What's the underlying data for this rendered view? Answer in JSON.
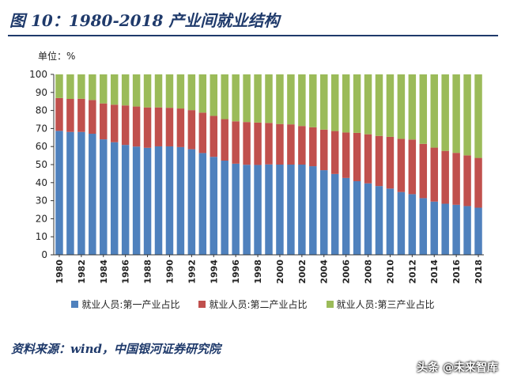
{
  "title": "图 10：1980-2018 产业间就业结构",
  "unit_label": "单位：%",
  "source": "资料来源：wind，中国银河证券研究院",
  "watermark": "头条 @未来智库",
  "colors": {
    "primary": "#4f81bd",
    "secondary": "#c0504d",
    "tertiary": "#9bbb59"
  },
  "chart_data": {
    "type": "bar",
    "stacked": true,
    "categories": [
      "1980",
      "1981",
      "1982",
      "1983",
      "1984",
      "1985",
      "1986",
      "1987",
      "1988",
      "1989",
      "1990",
      "1991",
      "1992",
      "1993",
      "1994",
      "1995",
      "1996",
      "1997",
      "1998",
      "1999",
      "2000",
      "2001",
      "2002",
      "2003",
      "2004",
      "2005",
      "2006",
      "2007",
      "2008",
      "2009",
      "2010",
      "2011",
      "2012",
      "2013",
      "2014",
      "2015",
      "2016",
      "2017",
      "2018"
    ],
    "x_tick_labels": [
      "1980",
      "1982",
      "1984",
      "1986",
      "1988",
      "1990",
      "1992",
      "1994",
      "1996",
      "1998",
      "2000",
      "2002",
      "2004",
      "2006",
      "2008",
      "2010",
      "2012",
      "2014",
      "2016",
      "2018"
    ],
    "series": [
      {
        "name": "就业人员:第一产业占比",
        "color": "#4f81bd",
        "values": [
          68.7,
          68.1,
          68.1,
          67.1,
          64.0,
          62.4,
          60.9,
          60.0,
          59.3,
          60.1,
          60.1,
          59.7,
          58.5,
          56.4,
          54.3,
          52.2,
          50.5,
          49.9,
          49.8,
          50.1,
          50.0,
          50.0,
          50.0,
          49.1,
          46.9,
          44.8,
          42.6,
          40.8,
          39.6,
          38.1,
          36.7,
          34.8,
          33.6,
          31.4,
          29.5,
          28.3,
          27.7,
          27.0,
          26.1
        ]
      },
      {
        "name": "就业人员:第二产业占比",
        "color": "#c0504d",
        "values": [
          18.2,
          18.3,
          18.4,
          18.7,
          19.9,
          20.8,
          21.9,
          22.2,
          22.4,
          21.6,
          21.4,
          21.4,
          21.7,
          22.4,
          22.7,
          23.0,
          23.5,
          23.7,
          23.5,
          23.0,
          22.5,
          22.3,
          21.4,
          21.6,
          22.5,
          23.8,
          25.2,
          26.8,
          27.2,
          27.8,
          28.7,
          29.5,
          30.3,
          30.1,
          29.9,
          29.3,
          28.8,
          28.1,
          27.6
        ]
      },
      {
        "name": "就业人员:第三产业占比",
        "color": "#9bbb59",
        "values": [
          13.1,
          13.6,
          13.5,
          14.2,
          16.1,
          16.8,
          17.2,
          17.8,
          18.3,
          18.3,
          18.5,
          18.9,
          19.8,
          21.2,
          23.0,
          24.8,
          26.0,
          26.4,
          26.7,
          26.9,
          27.5,
          27.7,
          28.6,
          29.3,
          30.6,
          31.4,
          32.2,
          32.4,
          33.2,
          34.1,
          34.6,
          35.7,
          36.1,
          38.5,
          40.6,
          42.4,
          43.5,
          44.9,
          46.3
        ]
      }
    ],
    "ylim": [
      0,
      100
    ],
    "yticks": [
      0,
      10,
      20,
      30,
      40,
      50,
      60,
      70,
      80,
      90,
      100
    ],
    "legend_position": "bottom",
    "grid": false
  }
}
